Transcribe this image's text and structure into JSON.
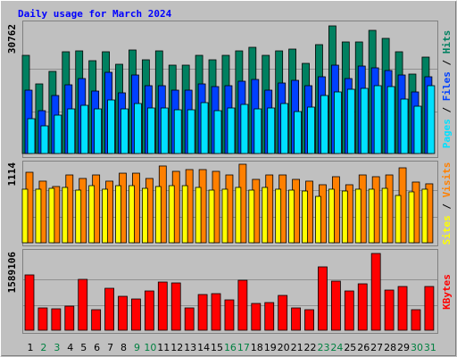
{
  "chart_data": [
    {
      "type": "bar",
      "title": "Daily usage for March 2024",
      "legend_separator": "/",
      "series": [
        {
          "name": "Hits",
          "color": "#008060",
          "values": [
            23663,
            16779,
            19792,
            24524,
            24739,
            22373,
            24524,
            21512,
            24954,
            22588,
            24739,
            21297,
            21297,
            23663,
            22588,
            23663,
            24739,
            25600,
            23663,
            24739,
            25169,
            21727,
            26245,
            30762,
            26890,
            26890,
            29687,
            27751,
            24524,
            19146,
            23233
          ]
        },
        {
          "name": "Files",
          "color": "#0040ff",
          "values": [
            15272,
            10325,
            13982,
            16563,
            18068,
            15057,
            19574,
            14627,
            18929,
            16348,
            16348,
            15272,
            15272,
            16778,
            16133,
            16348,
            17423,
            17853,
            15272,
            16993,
            17638,
            16348,
            18499,
            21295,
            18068,
            21080,
            20650,
            20004,
            18929,
            14842,
            18499
          ]
        },
        {
          "name": "Pages",
          "color": "#00e0ff",
          "values": [
            8389,
            6668,
            9249,
            10755,
            11615,
            10755,
            12906,
            10755,
            12046,
            10970,
            10970,
            10540,
            10540,
            12261,
            10325,
            10970,
            11830,
            10755,
            10970,
            12046,
            10110,
            11185,
            13982,
            14842,
            15487,
            15702,
            16348,
            16133,
            13121,
            11400,
            16348
          ]
        }
      ],
      "ylim": [
        0,
        30762
      ],
      "yticks": [
        30762
      ]
    },
    {
      "type": "bar",
      "legend_separator": "/",
      "series": [
        {
          "name": "Visits",
          "color": "#ff8000",
          "values": [
            1000,
            874,
            798,
            962,
            912,
            962,
            874,
            987,
            987,
            912,
            1089,
            1013,
            1038,
            1038,
            1013,
            962,
            1114,
            899,
            962,
            962,
            899,
            874,
            823,
            937,
            823,
            962,
            937,
            962,
            1063,
            861,
            836
          ]
        },
        {
          "name": "Sites",
          "color": "#ffff00",
          "values": [
            760,
            760,
            772,
            785,
            747,
            810,
            760,
            810,
            810,
            772,
            798,
            810,
            810,
            785,
            747,
            760,
            785,
            747,
            785,
            760,
            747,
            734,
            658,
            760,
            734,
            760,
            760,
            772,
            671,
            722,
            760
          ]
        }
      ],
      "ylim": [
        0,
        1114
      ],
      "yticks": [
        1114
      ]
    },
    {
      "type": "bar",
      "categories": [
        "1",
        "2",
        "3",
        "4",
        "5",
        "6",
        "7",
        "8",
        "9",
        "10",
        "11",
        "12",
        "13",
        "14",
        "15",
        "16",
        "17",
        "18",
        "19",
        "20",
        "21",
        "22",
        "23",
        "24",
        "25",
        "26",
        "27",
        "28",
        "29",
        "30",
        "31"
      ],
      "category_colors": [
        "#000000",
        "#008040",
        "#008040",
        "#000000",
        "#000000",
        "#000000",
        "#000000",
        "#000000",
        "#008040",
        "#008040",
        "#000000",
        "#000000",
        "#000000",
        "#000000",
        "#000000",
        "#008040",
        "#008040",
        "#000000",
        "#000000",
        "#000000",
        "#000000",
        "#000000",
        "#008040",
        "#008040",
        "#000000",
        "#000000",
        "#000000",
        "#000000",
        "#000000",
        "#008040",
        "#008040"
      ],
      "series": [
        {
          "name": "KBytes",
          "color": "#ff0000",
          "values": [
            1145636,
            461950,
            443472,
            498906,
            1053246,
            424994,
            868466,
            702164,
            646730,
            813032,
            997812,
            979334,
            461950,
            739120,
            757598,
            628252,
            1034768,
            554340,
            572818,
            720642,
            461950,
            424994,
            1311938,
            1016290,
            813032,
            960856,
            1589106,
            831510,
            905422,
            424994,
            905422
          ]
        }
      ],
      "ylim": [
        0,
        1589106
      ],
      "yticks": [
        1589106
      ]
    }
  ]
}
